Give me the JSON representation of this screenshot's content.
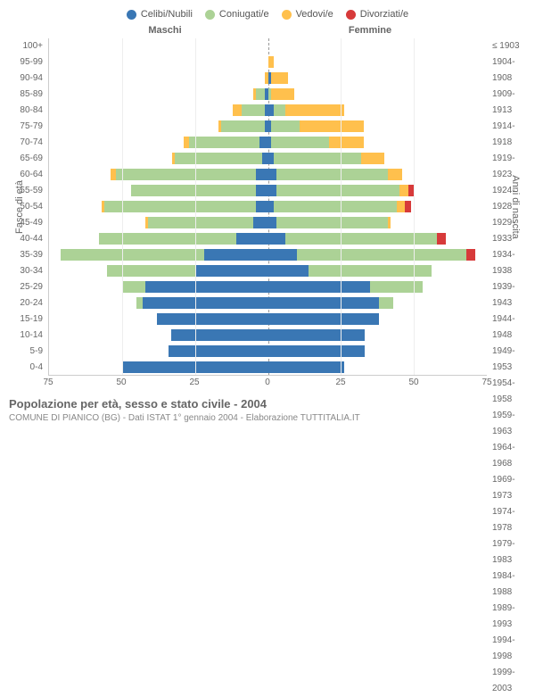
{
  "chart": {
    "type": "population-pyramid",
    "legend": [
      {
        "label": "Celibi/Nubili",
        "color": "#3a77b4"
      },
      {
        "label": "Coniugati/e",
        "color": "#acd296"
      },
      {
        "label": "Vedovi/e",
        "color": "#ffc04d"
      },
      {
        "label": "Divorziati/e",
        "color": "#d73a3a"
      }
    ],
    "male_header": "Maschi",
    "female_header": "Femmine",
    "y_left_title": "Fasce di età",
    "y_right_title": "Anni di nascita",
    "x_max": 75,
    "x_ticks": [
      75,
      50,
      25,
      0,
      25,
      50,
      75
    ],
    "age_groups": [
      "100+",
      "95-99",
      "90-94",
      "85-89",
      "80-84",
      "75-79",
      "70-74",
      "65-69",
      "60-64",
      "55-59",
      "50-54",
      "45-49",
      "40-44",
      "35-39",
      "30-34",
      "25-29",
      "20-24",
      "15-19",
      "10-14",
      "5-9",
      "0-4"
    ],
    "birth_years": [
      "≤ 1903",
      "1904-1908",
      "1909-1913",
      "1914-1918",
      "1919-1923",
      "1924-1928",
      "1929-1933",
      "1934-1938",
      "1939-1943",
      "1944-1948",
      "1949-1953",
      "1954-1958",
      "1959-1963",
      "1964-1968",
      "1969-1973",
      "1974-1978",
      "1979-1983",
      "1984-1988",
      "1989-1993",
      "1994-1998",
      "1999-2003"
    ],
    "rows": [
      {
        "m": {
          "c": 0,
          "co": 0,
          "v": 0,
          "d": 0
        },
        "f": {
          "c": 0,
          "co": 0,
          "v": 0,
          "d": 0
        }
      },
      {
        "m": {
          "c": 0,
          "co": 0,
          "v": 0,
          "d": 0
        },
        "f": {
          "c": 0,
          "co": 0,
          "v": 2,
          "d": 0
        }
      },
      {
        "m": {
          "c": 0,
          "co": 0,
          "v": 1,
          "d": 0
        },
        "f": {
          "c": 1,
          "co": 0,
          "v": 6,
          "d": 0
        }
      },
      {
        "m": {
          "c": 1,
          "co": 3,
          "v": 1,
          "d": 0
        },
        "f": {
          "c": 0,
          "co": 1,
          "v": 8,
          "d": 0
        }
      },
      {
        "m": {
          "c": 1,
          "co": 8,
          "v": 3,
          "d": 0
        },
        "f": {
          "c": 2,
          "co": 4,
          "v": 20,
          "d": 0
        }
      },
      {
        "m": {
          "c": 1,
          "co": 15,
          "v": 1,
          "d": 0
        },
        "f": {
          "c": 1,
          "co": 10,
          "v": 22,
          "d": 0
        }
      },
      {
        "m": {
          "c": 3,
          "co": 24,
          "v": 2,
          "d": 0
        },
        "f": {
          "c": 1,
          "co": 20,
          "v": 12,
          "d": 0
        }
      },
      {
        "m": {
          "c": 2,
          "co": 30,
          "v": 1,
          "d": 0
        },
        "f": {
          "c": 2,
          "co": 30,
          "v": 8,
          "d": 0
        }
      },
      {
        "m": {
          "c": 4,
          "co": 48,
          "v": 2,
          "d": 0
        },
        "f": {
          "c": 3,
          "co": 38,
          "v": 5,
          "d": 0
        }
      },
      {
        "m": {
          "c": 4,
          "co": 43,
          "v": 0,
          "d": 0
        },
        "f": {
          "c": 3,
          "co": 42,
          "v": 3,
          "d": 2
        }
      },
      {
        "m": {
          "c": 4,
          "co": 52,
          "v": 1,
          "d": 0
        },
        "f": {
          "c": 2,
          "co": 42,
          "v": 3,
          "d": 2
        }
      },
      {
        "m": {
          "c": 5,
          "co": 36,
          "v": 1,
          "d": 0
        },
        "f": {
          "c": 3,
          "co": 38,
          "v": 1,
          "d": 0
        }
      },
      {
        "m": {
          "c": 11,
          "co": 47,
          "v": 0,
          "d": 0
        },
        "f": {
          "c": 6,
          "co": 52,
          "v": 0,
          "d": 3
        }
      },
      {
        "m": {
          "c": 22,
          "co": 49,
          "v": 0,
          "d": 0
        },
        "f": {
          "c": 10,
          "co": 58,
          "v": 0,
          "d": 3
        }
      },
      {
        "m": {
          "c": 25,
          "co": 30,
          "v": 0,
          "d": 0
        },
        "f": {
          "c": 14,
          "co": 42,
          "v": 0,
          "d": 0
        }
      },
      {
        "m": {
          "c": 42,
          "co": 8,
          "v": 0,
          "d": 0
        },
        "f": {
          "c": 35,
          "co": 18,
          "v": 0,
          "d": 0
        }
      },
      {
        "m": {
          "c": 43,
          "co": 2,
          "v": 0,
          "d": 0
        },
        "f": {
          "c": 38,
          "co": 5,
          "v": 0,
          "d": 0
        }
      },
      {
        "m": {
          "c": 38,
          "co": 0,
          "v": 0,
          "d": 0
        },
        "f": {
          "c": 38,
          "co": 0,
          "v": 0,
          "d": 0
        }
      },
      {
        "m": {
          "c": 33,
          "co": 0,
          "v": 0,
          "d": 0
        },
        "f": {
          "c": 33,
          "co": 0,
          "v": 0,
          "d": 0
        }
      },
      {
        "m": {
          "c": 34,
          "co": 0,
          "v": 0,
          "d": 0
        },
        "f": {
          "c": 33,
          "co": 0,
          "v": 0,
          "d": 0
        }
      },
      {
        "m": {
          "c": 50,
          "co": 0,
          "v": 0,
          "d": 0
        },
        "f": {
          "c": 26,
          "co": 0,
          "v": 0,
          "d": 0
        }
      }
    ],
    "grid_color": "#eee",
    "axis_color": "#ccc",
    "background": "#ffffff"
  },
  "caption": {
    "title": "Popolazione per età, sesso e stato civile - 2004",
    "subtitle": "COMUNE DI PIANICO (BG) - Dati ISTAT 1° gennaio 2004 - Elaborazione TUTTITALIA.IT"
  }
}
